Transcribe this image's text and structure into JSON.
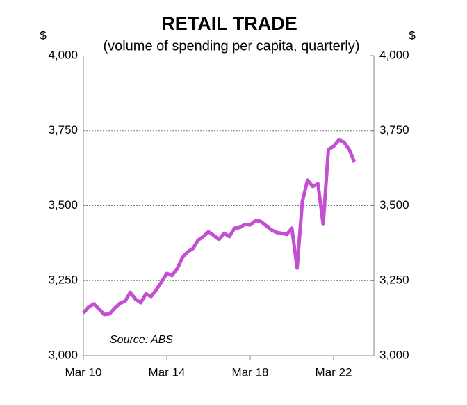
{
  "chart_data": {
    "type": "line",
    "title": "RETAIL TRADE",
    "subtitle": "(volume of spending per capita, quarterly)",
    "y_unit": "$",
    "annotation": "Source: ABS",
    "categories": [
      "Mar 10",
      null,
      null,
      null,
      null,
      null,
      null,
      null,
      null,
      null,
      null,
      null,
      null,
      null,
      null,
      null,
      "Mar 14",
      null,
      null,
      null,
      null,
      null,
      null,
      null,
      null,
      null,
      null,
      null,
      null,
      null,
      null,
      null,
      "Mar 18",
      null,
      null,
      null,
      null,
      null,
      null,
      null,
      null,
      null,
      null,
      null,
      null,
      null,
      null,
      null,
      "Mar 22",
      null,
      null,
      null,
      null
    ],
    "series": [
      {
        "name": "Retail trade",
        "color": "#c44fd1",
        "values": [
          3142,
          3162,
          3172,
          3155,
          3137,
          3139,
          3158,
          3174,
          3181,
          3211,
          3188,
          3176,
          3206,
          3197,
          3220,
          3246,
          3274,
          3267,
          3290,
          3327,
          3346,
          3357,
          3385,
          3397,
          3413,
          3401,
          3387,
          3408,
          3397,
          3425,
          3427,
          3438,
          3436,
          3450,
          3448,
          3434,
          3420,
          3411,
          3408,
          3404,
          3425,
          3292,
          3513,
          3585,
          3564,
          3573,
          3438,
          3687,
          3698,
          3719,
          3712,
          3687,
          3645
        ]
      }
    ],
    "ylim": [
      3000,
      4000
    ],
    "yticks": [
      {
        "value": 3000,
        "label": "3,000"
      },
      {
        "value": 3250,
        "label": "3,250"
      },
      {
        "value": 3500,
        "label": "3,500"
      },
      {
        "value": 3750,
        "label": "3,750"
      },
      {
        "value": 4000,
        "label": "4,000"
      }
    ],
    "grid": true
  }
}
